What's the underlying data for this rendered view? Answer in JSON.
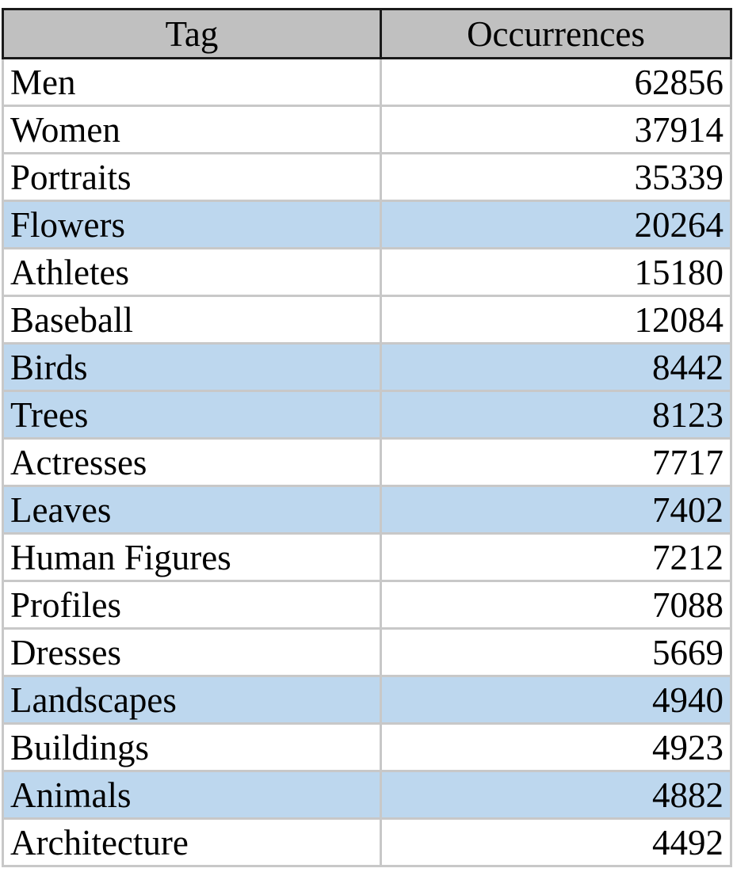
{
  "table": {
    "headers": [
      "Tag",
      "Occurrences"
    ],
    "highlight_color": "#bdd7ee",
    "header_color": "#c0c0c0",
    "rows": [
      {
        "tag": "Men",
        "occurrences": "62856",
        "highlighted": false
      },
      {
        "tag": "Women",
        "occurrences": "37914",
        "highlighted": false
      },
      {
        "tag": "Portraits",
        "occurrences": "35339",
        "highlighted": false
      },
      {
        "tag": "Flowers",
        "occurrences": "20264",
        "highlighted": true
      },
      {
        "tag": "Athletes",
        "occurrences": "15180",
        "highlighted": false
      },
      {
        "tag": "Baseball",
        "occurrences": "12084",
        "highlighted": false
      },
      {
        "tag": "Birds",
        "occurrences": "8442",
        "highlighted": true
      },
      {
        "tag": "Trees",
        "occurrences": "8123",
        "highlighted": true
      },
      {
        "tag": "Actresses",
        "occurrences": "7717",
        "highlighted": false
      },
      {
        "tag": "Leaves",
        "occurrences": "7402",
        "highlighted": true
      },
      {
        "tag": "Human Figures",
        "occurrences": "7212",
        "highlighted": false
      },
      {
        "tag": "Profiles",
        "occurrences": "7088",
        "highlighted": false
      },
      {
        "tag": "Dresses",
        "occurrences": "5669",
        "highlighted": false
      },
      {
        "tag": "Landscapes",
        "occurrences": "4940",
        "highlighted": true
      },
      {
        "tag": "Buildings",
        "occurrences": "4923",
        "highlighted": false
      },
      {
        "tag": "Animals",
        "occurrences": "4882",
        "highlighted": true
      },
      {
        "tag": "Architecture",
        "occurrences": "4492",
        "highlighted": false
      }
    ]
  }
}
